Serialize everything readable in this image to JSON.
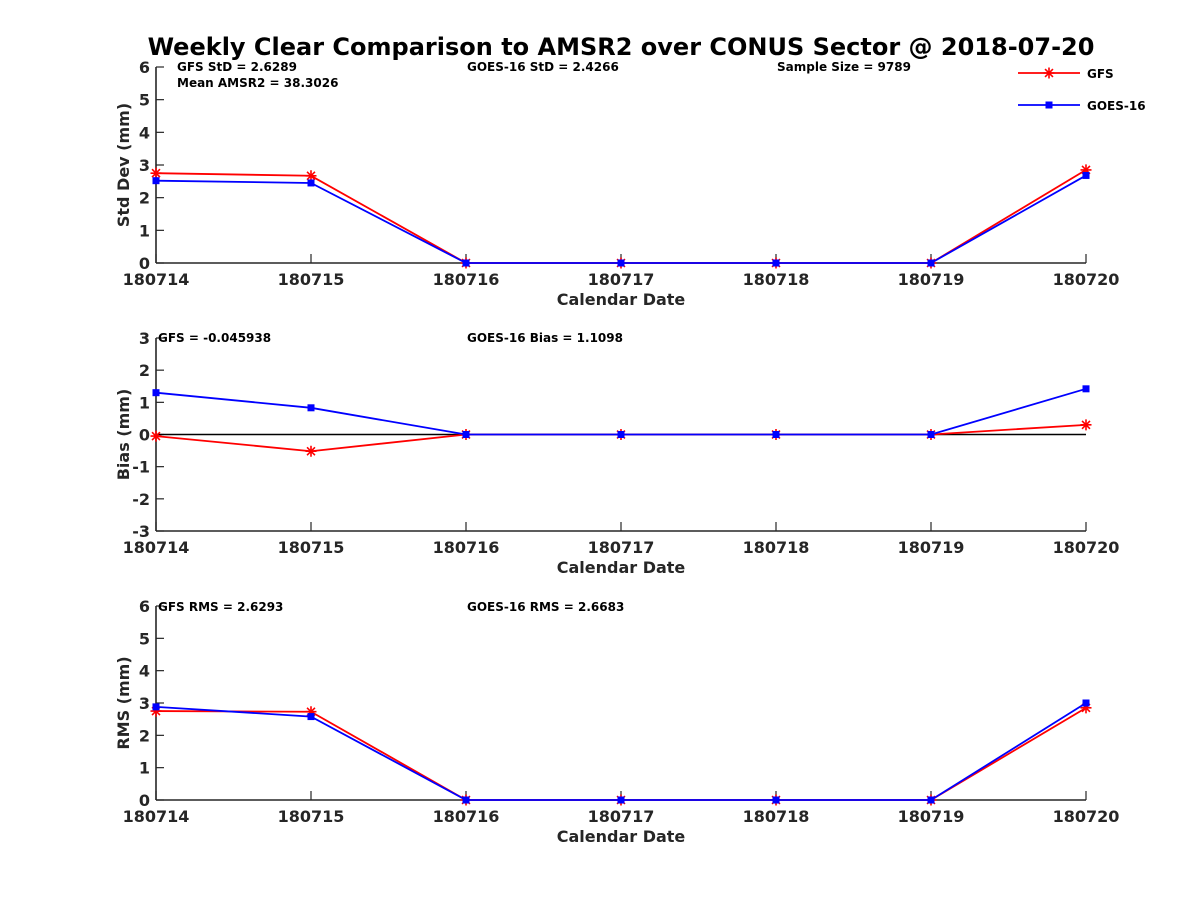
{
  "figure": {
    "title": "Weekly Clear Comparison to AMSR2 over CONUS Sector @ 2018-07-20"
  },
  "legend": {
    "placement": "top-right",
    "entries": [
      {
        "name": "GFS",
        "color": "#ff0000",
        "marker": "asterisk"
      },
      {
        "name": "GOES-16",
        "color": "#0000ff",
        "marker": "square"
      }
    ]
  },
  "colors": {
    "gfs": "#ff0000",
    "goes16": "#0000ff",
    "zero_line": "#000000",
    "axis": "#262626"
  },
  "chart_data": [
    {
      "type": "line",
      "title": "",
      "xlabel": "Calendar Date",
      "ylabel": "Std Dev (mm)",
      "categories": [
        "180714",
        "180715",
        "180716",
        "180717",
        "180718",
        "180719",
        "180720"
      ],
      "ylim": [
        0,
        6
      ],
      "yticks": [
        0,
        1,
        2,
        3,
        4,
        5,
        6
      ],
      "grid": false,
      "zero_line": false,
      "annotations": [
        {
          "text": "GFS StD = 2.6289"
        },
        {
          "text": "Mean AMSR2 = 38.3026"
        },
        {
          "text": "GOES-16 StD = 2.4266"
        },
        {
          "text": "Sample Size = 9789"
        }
      ],
      "series": [
        {
          "name": "GFS",
          "values": [
            2.75,
            2.67,
            0,
            0,
            0,
            0,
            2.85
          ]
        },
        {
          "name": "GOES-16",
          "values": [
            2.52,
            2.45,
            0,
            0,
            0,
            0,
            2.68
          ]
        }
      ]
    },
    {
      "type": "line",
      "title": "",
      "xlabel": "Calendar Date",
      "ylabel": "Bias (mm)",
      "categories": [
        "180714",
        "180715",
        "180716",
        "180717",
        "180718",
        "180719",
        "180720"
      ],
      "ylim": [
        -3,
        3
      ],
      "yticks": [
        -3,
        -2,
        -1,
        0,
        1,
        2,
        3
      ],
      "grid": false,
      "zero_line": true,
      "annotations": [
        {
          "text": "GFS = -0.045938"
        },
        {
          "text": "GOES-16 Bias  = 1.1098"
        }
      ],
      "series": [
        {
          "name": "GFS",
          "values": [
            -0.05,
            -0.52,
            0,
            0,
            0,
            0,
            0.3
          ]
        },
        {
          "name": "GOES-16",
          "values": [
            1.3,
            0.83,
            0,
            0,
            0,
            0,
            1.42
          ]
        }
      ]
    },
    {
      "type": "line",
      "title": "",
      "xlabel": "Calendar Date",
      "ylabel": "RMS (mm)",
      "categories": [
        "180714",
        "180715",
        "180716",
        "180717",
        "180718",
        "180719",
        "180720"
      ],
      "ylim": [
        0,
        6
      ],
      "yticks": [
        0,
        1,
        2,
        3,
        4,
        5,
        6
      ],
      "grid": false,
      "zero_line": false,
      "annotations": [
        {
          "text": "GFS RMS = 2.6293"
        },
        {
          "text": "GOES-16 RMS = 2.6683"
        }
      ],
      "series": [
        {
          "name": "GFS",
          "values": [
            2.75,
            2.73,
            0,
            0,
            0,
            0,
            2.85
          ]
        },
        {
          "name": "GOES-16",
          "values": [
            2.88,
            2.58,
            0,
            0,
            0,
            0,
            3.0
          ]
        }
      ]
    }
  ]
}
